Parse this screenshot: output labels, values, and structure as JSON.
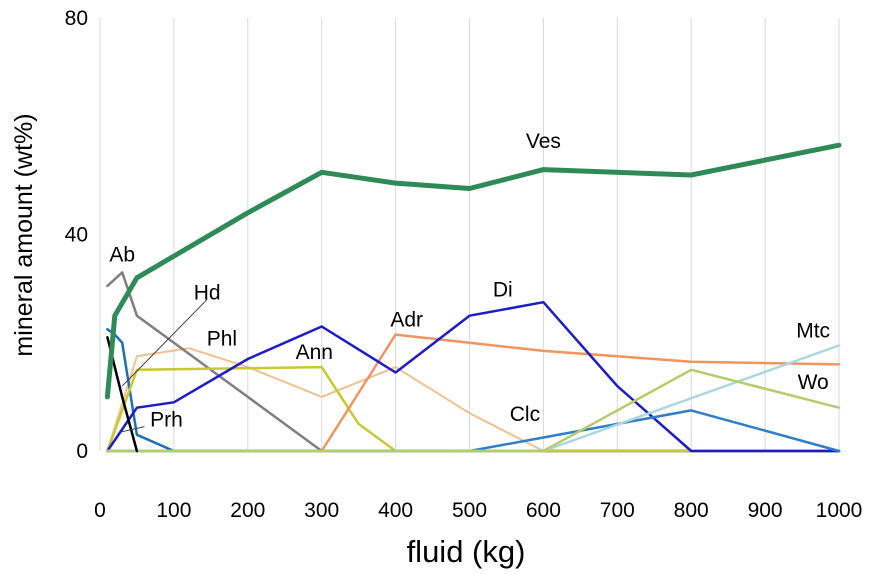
{
  "chart_data": {
    "type": "line",
    "xlabel": "fluid (kg)",
    "ylabel": "mineral amount (wt%)",
    "xlim": [
      0,
      1000
    ],
    "ylim": [
      0,
      80
    ],
    "x_ticks": [
      "0",
      "100",
      "200",
      "300",
      "400",
      "500",
      "600",
      "700",
      "800",
      "900",
      "1000"
    ],
    "y_ticks": [
      "0",
      "40",
      "80"
    ],
    "grid": "vertical only",
    "series": [
      {
        "name": "Ves",
        "color": "#2e8b57",
        "width": 5,
        "points": [
          [
            10,
            10
          ],
          [
            20,
            25
          ],
          [
            50,
            32
          ],
          [
            100,
            36
          ],
          [
            200,
            44
          ],
          [
            300,
            51.5
          ],
          [
            400,
            49.5
          ],
          [
            500,
            48.5
          ],
          [
            600,
            52
          ],
          [
            800,
            51
          ],
          [
            1000,
            56.5
          ]
        ]
      },
      {
        "name": "Ab",
        "color": "#7f7f7f",
        "width": 2.5,
        "points": [
          [
            10,
            30.5
          ],
          [
            30,
            33
          ],
          [
            50,
            25
          ],
          [
            100,
            20
          ],
          [
            200,
            10
          ],
          [
            300,
            0
          ],
          [
            1000,
            0
          ]
        ]
      },
      {
        "name": "Hd",
        "color": "#1f6fb4",
        "width": 2.5,
        "points": [
          [
            10,
            22.5
          ],
          [
            20,
            21.5
          ],
          [
            30,
            20
          ],
          [
            50,
            3
          ],
          [
            100,
            0
          ],
          [
            1000,
            0
          ]
        ]
      },
      {
        "name": "Phl",
        "color": "#f5c08f",
        "width": 2,
        "points": [
          [
            10,
            0
          ],
          [
            50,
            17.5
          ],
          [
            120,
            19
          ],
          [
            200,
            15.5
          ],
          [
            300,
            10
          ],
          [
            400,
            15.5
          ],
          [
            500,
            7
          ],
          [
            600,
            0
          ],
          [
            1000,
            0
          ]
        ]
      },
      {
        "name": "Ann",
        "color": "#c8c832",
        "width": 2.5,
        "points": [
          [
            10,
            0
          ],
          [
            50,
            15
          ],
          [
            300,
            15.5
          ],
          [
            350,
            5
          ],
          [
            400,
            0
          ],
          [
            1000,
            0
          ]
        ]
      },
      {
        "name": "Adr",
        "color": "#f0955f",
        "width": 2.5,
        "points": [
          [
            10,
            0
          ],
          [
            300,
            0
          ],
          [
            400,
            21.5
          ],
          [
            600,
            18.5
          ],
          [
            800,
            16.5
          ],
          [
            1000,
            16
          ]
        ]
      },
      {
        "name": "Di",
        "color": "#1c1cc8",
        "width": 2.5,
        "points": [
          [
            10,
            0
          ],
          [
            50,
            8
          ],
          [
            100,
            9
          ],
          [
            200,
            17
          ],
          [
            300,
            23
          ],
          [
            400,
            14.5
          ],
          [
            500,
            25
          ],
          [
            600,
            27.5
          ],
          [
            700,
            12
          ],
          [
            800,
            0
          ],
          [
            1000,
            0
          ]
        ]
      },
      {
        "name": "Clc",
        "color": "#2e7fc8",
        "width": 2.5,
        "points": [
          [
            10,
            0
          ],
          [
            500,
            0
          ],
          [
            600,
            2.5
          ],
          [
            800,
            7.5
          ],
          [
            1000,
            0
          ]
        ]
      },
      {
        "name": "Mtc",
        "color": "#a8d8e0",
        "width": 2.5,
        "points": [
          [
            10,
            0
          ],
          [
            600,
            0
          ],
          [
            1000,
            19.5
          ]
        ]
      },
      {
        "name": "Wo",
        "color": "#b5cc6a",
        "width": 2.5,
        "points": [
          [
            10,
            0
          ],
          [
            600,
            0
          ],
          [
            800,
            15
          ],
          [
            1000,
            8
          ]
        ]
      },
      {
        "name": "Prh",
        "color": "#000000",
        "width": 2.5,
        "points": [
          [
            10,
            21
          ],
          [
            30,
            10
          ],
          [
            50,
            0
          ]
        ]
      },
      {
        "name": "",
        "color": "#b8860b",
        "width": 2,
        "points": [
          [
            10,
            0
          ],
          [
            1000,
            0
          ]
        ]
      }
    ],
    "labels": [
      {
        "text": "Ves",
        "x": 600,
        "y": 56
      },
      {
        "text": "Ab",
        "x": 30,
        "y": 35
      },
      {
        "text": "Hd",
        "x": 145,
        "y": 28
      },
      {
        "text": "Phl",
        "x": 165,
        "y": 19.5
      },
      {
        "text": "Ann",
        "x": 290,
        "y": 17
      },
      {
        "text": "Adr",
        "x": 415,
        "y": 23
      },
      {
        "text": "Di",
        "x": 545,
        "y": 28.5
      },
      {
        "text": "Clc",
        "x": 575,
        "y": 5.5
      },
      {
        "text": "Mtc",
        "x": 965,
        "y": 21
      },
      {
        "text": "Wo",
        "x": 965,
        "y": 11.5
      },
      {
        "text": "Prh",
        "x": 90,
        "y": 4.5
      }
    ],
    "leaders": [
      {
        "from": [
          145,
          28
        ],
        "to": [
          30,
          12
        ]
      },
      {
        "from": [
          60,
          4.5
        ],
        "to": [
          28,
          3.5
        ]
      }
    ]
  }
}
